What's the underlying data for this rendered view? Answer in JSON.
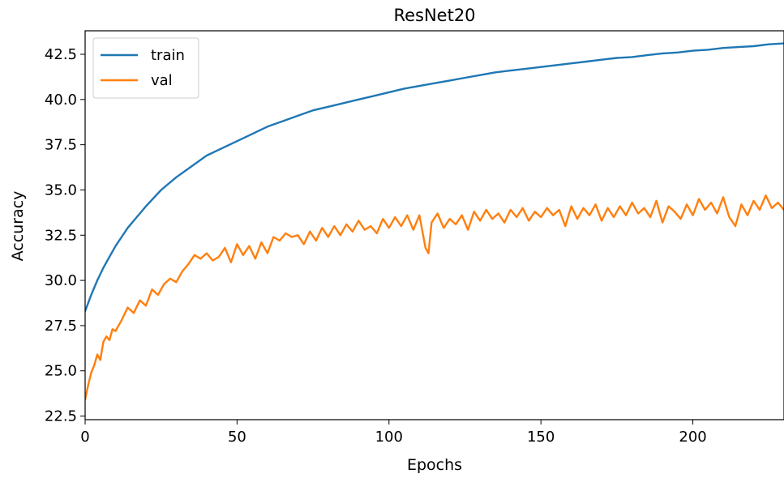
{
  "chart_data": {
    "type": "line",
    "title": "ResNet20",
    "xlabel": "Epochs",
    "ylabel": "Accuracy",
    "xlim": [
      0,
      230
    ],
    "ylim": [
      22.3,
      43.8
    ],
    "xticks": [
      0,
      50,
      100,
      150,
      200
    ],
    "yticks": [
      22.5,
      25.0,
      27.5,
      30.0,
      32.5,
      35.0,
      37.5,
      40.0,
      42.5
    ],
    "grid": false,
    "legend_position": "top-left",
    "series": [
      {
        "name": "train",
        "color": "#1f77b4",
        "x": [
          0,
          2,
          4,
          6,
          8,
          10,
          12,
          14,
          16,
          18,
          20,
          25,
          30,
          35,
          40,
          45,
          50,
          55,
          60,
          65,
          70,
          75,
          80,
          85,
          90,
          95,
          100,
          105,
          110,
          115,
          120,
          125,
          130,
          135,
          140,
          145,
          150,
          155,
          160,
          165,
          170,
          175,
          180,
          185,
          190,
          195,
          200,
          205,
          210,
          215,
          220,
          225,
          230
        ],
        "y": [
          28.3,
          29.2,
          30.0,
          30.7,
          31.3,
          31.9,
          32.4,
          32.9,
          33.3,
          33.7,
          34.1,
          35.0,
          35.7,
          36.3,
          36.9,
          37.3,
          37.7,
          38.1,
          38.5,
          38.8,
          39.1,
          39.4,
          39.6,
          39.8,
          40.0,
          40.2,
          40.4,
          40.6,
          40.75,
          40.9,
          41.05,
          41.2,
          41.35,
          41.5,
          41.6,
          41.7,
          41.8,
          41.9,
          42.0,
          42.1,
          42.2,
          42.3,
          42.35,
          42.45,
          42.55,
          42.6,
          42.7,
          42.75,
          42.85,
          42.9,
          42.95,
          43.05,
          43.1
        ]
      },
      {
        "name": "val",
        "color": "#ff7f0e",
        "x": [
          0,
          1,
          2,
          3,
          4,
          5,
          6,
          7,
          8,
          9,
          10,
          12,
          14,
          16,
          18,
          20,
          22,
          24,
          26,
          28,
          30,
          32,
          34,
          36,
          38,
          40,
          42,
          44,
          46,
          48,
          50,
          52,
          54,
          56,
          58,
          60,
          62,
          64,
          66,
          68,
          70,
          72,
          74,
          76,
          78,
          80,
          82,
          84,
          86,
          88,
          90,
          92,
          94,
          96,
          98,
          100,
          102,
          104,
          106,
          108,
          110,
          112,
          113,
          114,
          116,
          118,
          120,
          122,
          124,
          126,
          128,
          130,
          132,
          134,
          136,
          138,
          140,
          142,
          144,
          146,
          148,
          150,
          152,
          154,
          156,
          158,
          160,
          162,
          164,
          166,
          168,
          170,
          172,
          174,
          176,
          178,
          180,
          182,
          184,
          186,
          188,
          190,
          192,
          194,
          196,
          198,
          200,
          202,
          204,
          206,
          208,
          210,
          212,
          214,
          216,
          218,
          220,
          222,
          224,
          226,
          228,
          230
        ],
        "y": [
          23.4,
          24.2,
          24.9,
          25.3,
          25.9,
          25.6,
          26.6,
          26.9,
          26.7,
          27.3,
          27.2,
          27.8,
          28.5,
          28.2,
          28.9,
          28.6,
          29.5,
          29.2,
          29.8,
          30.1,
          29.9,
          30.5,
          30.9,
          31.4,
          31.2,
          31.5,
          31.1,
          31.3,
          31.8,
          31.0,
          32.0,
          31.4,
          31.9,
          31.2,
          32.1,
          31.5,
          32.4,
          32.2,
          32.6,
          32.4,
          32.5,
          32.0,
          32.7,
          32.2,
          32.9,
          32.4,
          33.0,
          32.5,
          33.1,
          32.7,
          33.3,
          32.8,
          33.0,
          32.6,
          33.4,
          32.9,
          33.5,
          33.0,
          33.6,
          32.8,
          33.6,
          31.8,
          31.5,
          33.2,
          33.7,
          32.9,
          33.4,
          33.1,
          33.6,
          32.8,
          33.8,
          33.3,
          33.9,
          33.4,
          33.7,
          33.2,
          33.9,
          33.5,
          34.0,
          33.3,
          33.8,
          33.5,
          34.0,
          33.6,
          33.9,
          33.0,
          34.1,
          33.4,
          34.0,
          33.6,
          34.2,
          33.3,
          34.0,
          33.5,
          34.1,
          33.6,
          34.3,
          33.7,
          34.0,
          33.5,
          34.4,
          33.2,
          34.1,
          33.8,
          33.4,
          34.2,
          33.6,
          34.5,
          33.9,
          34.3,
          33.7,
          34.6,
          33.5,
          33.0,
          34.2,
          33.6,
          34.4,
          33.9,
          34.7,
          34.0,
          34.3,
          33.9
        ]
      }
    ]
  }
}
